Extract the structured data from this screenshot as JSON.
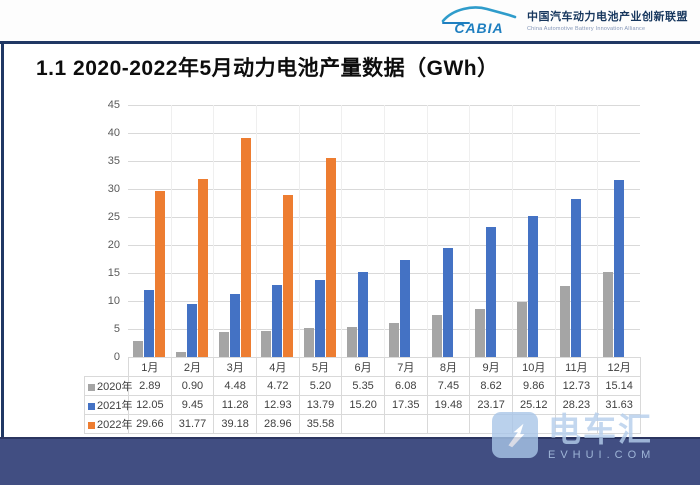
{
  "header": {
    "logo_word": "CABIA",
    "org_name_cn": "中国汽车动力电池产业创新联盟",
    "org_name_en": "China Automotive Battery Innovation Alliance"
  },
  "title": "1.1 2020-2022年5月动力电池产量数据（GWh）",
  "watermark": {
    "brand": "电车汇",
    "domain": "EVHUI.COM"
  },
  "colors": {
    "series_2020": "#a5a5a5",
    "series_2021": "#4472c4",
    "series_2022": "#ed7d31",
    "accent_navy": "#203864",
    "footer_navy": "#414e82",
    "grid": "#d9d9d9",
    "axis_text": "#595959",
    "table_text": "#404040"
  },
  "chart_data": {
    "type": "bar",
    "title": "1.1 2020-2022年5月动力电池产量数据（GWh）",
    "xlabel": "",
    "ylabel": "",
    "ylim": [
      0,
      45
    ],
    "ytick_step": 5,
    "yticks": [
      0,
      5,
      10,
      15,
      20,
      25,
      30,
      35,
      40,
      45
    ],
    "grid": true,
    "legend_position": "data-table-left",
    "value_format": "0.00",
    "categories": [
      "1月",
      "2月",
      "3月",
      "4月",
      "5月",
      "6月",
      "7月",
      "8月",
      "9月",
      "10月",
      "11月",
      "12月"
    ],
    "series": [
      {
        "name": "2020年",
        "color": "#a5a5a5",
        "values": [
          2.89,
          0.9,
          4.48,
          4.72,
          5.2,
          5.35,
          6.08,
          7.45,
          8.62,
          9.86,
          12.73,
          15.14
        ]
      },
      {
        "name": "2021年",
        "color": "#4472c4",
        "values": [
          12.05,
          9.45,
          11.28,
          12.93,
          13.79,
          15.2,
          17.35,
          19.48,
          23.17,
          25.12,
          28.23,
          31.63
        ]
      },
      {
        "name": "2022年",
        "color": "#ed7d31",
        "values": [
          29.66,
          31.77,
          39.18,
          28.96,
          35.58,
          null,
          null,
          null,
          null,
          null,
          null,
          null
        ]
      }
    ]
  }
}
